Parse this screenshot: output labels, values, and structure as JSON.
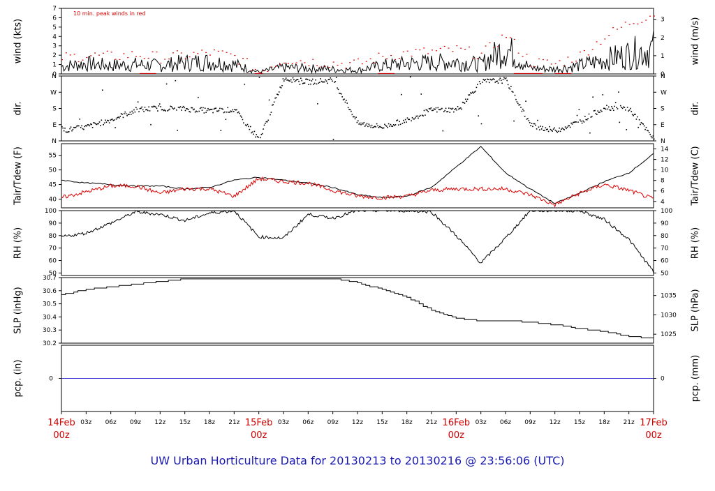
{
  "footer_title": "UW Urban Horticulture Data for 20130213  to  20130216 @ 23:56:06  (UTC)",
  "colors": {
    "series_black": "#000000",
    "series_red": "#dd0000",
    "pcp_line": "#2a2ad0",
    "footer": "#1a1ab0",
    "day_label": "#cc0000"
  },
  "x_hours_ticks": [
    "03z",
    "06z",
    "09z",
    "12z",
    "15z",
    "18z",
    "21z",
    "03z",
    "06z",
    "09z",
    "12z",
    "15z",
    "18z",
    "21z",
    "03z",
    "06z",
    "09z",
    "12z",
    "15z",
    "18z",
    "21z"
  ],
  "day_labels": [
    {
      "day": "14Feb",
      "hour": "00z"
    },
    {
      "day": "15Feb",
      "hour": "00z"
    },
    {
      "day": "16Feb",
      "hour": "00z"
    },
    {
      "day": "17Feb",
      "hour": "00z"
    }
  ],
  "chart_data": [
    {
      "id": "wind",
      "type": "line",
      "title": "10 min. peak winds in red",
      "ylabel": "wind (kts)",
      "ylabel_right": "wind (m/s)",
      "ylim": [
        0,
        7
      ],
      "yticks": [
        0,
        1,
        2,
        3,
        4,
        5,
        6,
        7
      ],
      "right_ylim": [
        0,
        3.6
      ],
      "right_yticks": [
        0,
        1,
        2,
        3
      ],
      "x": [
        0,
        3,
        6,
        9,
        12,
        15,
        18,
        21,
        24,
        27,
        30,
        33,
        36,
        39,
        42,
        45,
        48,
        51,
        54,
        57,
        60,
        63,
        66,
        69,
        72
      ],
      "series": [
        {
          "values": [
            0.8,
            1.1,
            0.9,
            1.0,
            0.9,
            1.2,
            1.3,
            1.0,
            0.2,
            0.7,
            0.6,
            0.5,
            0.4,
            0.9,
            1.1,
            1.2,
            1.3,
            1.0,
            2.8,
            0.6,
            0.5,
            0.9,
            1.5,
            2.1,
            2.7
          ]
        },
        {
          "values": [
            1.8,
            2.0,
            1.9,
            2.1,
            1.8,
            2.0,
            2.3,
            1.9,
            0.3,
            1.6,
            1.4,
            1.2,
            1.1,
            1.9,
            2.3,
            2.4,
            2.6,
            2.1,
            4.2,
            1.3,
            1.1,
            2.0,
            4.0,
            5.5,
            6.5
          ]
        }
      ]
    },
    {
      "id": "dir",
      "type": "scatter",
      "ylabel": "dir.",
      "ylabel_right": "dir.",
      "yticks": [
        "N",
        "E",
        "S",
        "W",
        "N"
      ],
      "x": [
        0,
        3,
        6,
        9,
        12,
        15,
        18,
        21,
        24,
        27,
        30,
        33,
        36,
        39,
        42,
        45,
        48,
        51,
        54,
        57,
        60,
        63,
        66,
        69,
        72
      ],
      "values_deg": [
        60,
        80,
        120,
        175,
        185,
        180,
        170,
        175,
        10,
        350,
        330,
        340,
        100,
        80,
        120,
        175,
        175,
        330,
        340,
        90,
        60,
        110,
        190,
        180,
        10
      ]
    },
    {
      "id": "temp",
      "type": "line",
      "ylabel": "Tair/Tdew (F)",
      "ylabel_right": "Tair/Tdew (C)",
      "ylim": [
        37,
        59
      ],
      "yticks": [
        40,
        45,
        50,
        55
      ],
      "right_yticks": [
        4,
        6,
        8,
        10,
        12,
        14
      ],
      "x": [
        0,
        3,
        6,
        9,
        12,
        15,
        18,
        21,
        24,
        27,
        30,
        33,
        36,
        39,
        42,
        45,
        48,
        51,
        54,
        57,
        60,
        63,
        66,
        69,
        72
      ],
      "series": [
        {
          "name": "Tair",
          "values": [
            46.5,
            45.5,
            45.0,
            44.5,
            44.5,
            43.5,
            44.0,
            46.5,
            47.5,
            46.5,
            45.5,
            44.0,
            41.5,
            40.5,
            41.0,
            44.0,
            51.0,
            58.0,
            49.0,
            43.5,
            38.5,
            42.0,
            46.0,
            49.0,
            55.5
          ]
        },
        {
          "name": "Tdew",
          "values": [
            40.5,
            42.5,
            44.5,
            44.5,
            42.0,
            43.5,
            43.5,
            41.0,
            47.0,
            46.0,
            45.5,
            43.0,
            41.0,
            40.5,
            41.0,
            43.0,
            43.5,
            43.5,
            43.5,
            41.5,
            38.0,
            42.0,
            45.0,
            43.0,
            40.0
          ]
        }
      ]
    },
    {
      "id": "rh",
      "type": "line",
      "ylabel": "RH (%)",
      "ylabel_right": "RH (%)",
      "ylim": [
        48,
        100
      ],
      "yticks": [
        50,
        60,
        70,
        80,
        90,
        100
      ],
      "x": [
        0,
        3,
        6,
        9,
        12,
        15,
        18,
        21,
        24,
        27,
        30,
        33,
        36,
        39,
        42,
        45,
        48,
        51,
        54,
        57,
        60,
        63,
        66,
        69,
        72
      ],
      "values": [
        79,
        82,
        90,
        99,
        97,
        92,
        98,
        100,
        79,
        78,
        97,
        94,
        100,
        100,
        100,
        99,
        80,
        58,
        78,
        100,
        100,
        100,
        93,
        77,
        51
      ]
    },
    {
      "id": "slp",
      "type": "line",
      "ylabel": "SLP (inHg)",
      "ylabel_right": "SLP (hPa)",
      "ylim": [
        30.2,
        30.7
      ],
      "yticks": [
        30.2,
        30.3,
        30.4,
        30.5,
        30.6,
        30.7
      ],
      "right_yticks": [
        1025,
        1030,
        1035
      ],
      "x": [
        0,
        3,
        6,
        9,
        12,
        15,
        18,
        21,
        24,
        27,
        30,
        33,
        36,
        39,
        42,
        45,
        48,
        51,
        54,
        57,
        60,
        63,
        66,
        69,
        72
      ],
      "values": [
        30.57,
        30.61,
        30.63,
        30.65,
        30.67,
        30.69,
        30.69,
        30.69,
        30.69,
        30.69,
        30.69,
        30.69,
        30.66,
        30.61,
        30.55,
        30.45,
        30.39,
        30.37,
        30.37,
        30.36,
        30.34,
        30.31,
        30.29,
        30.25,
        30.24
      ]
    },
    {
      "id": "pcp",
      "type": "line",
      "ylabel": "pcp. (in)",
      "ylabel_right": "pcp. (mm)",
      "yticks": [
        0
      ],
      "right_yticks": [
        0
      ],
      "values": [
        0
      ]
    }
  ]
}
